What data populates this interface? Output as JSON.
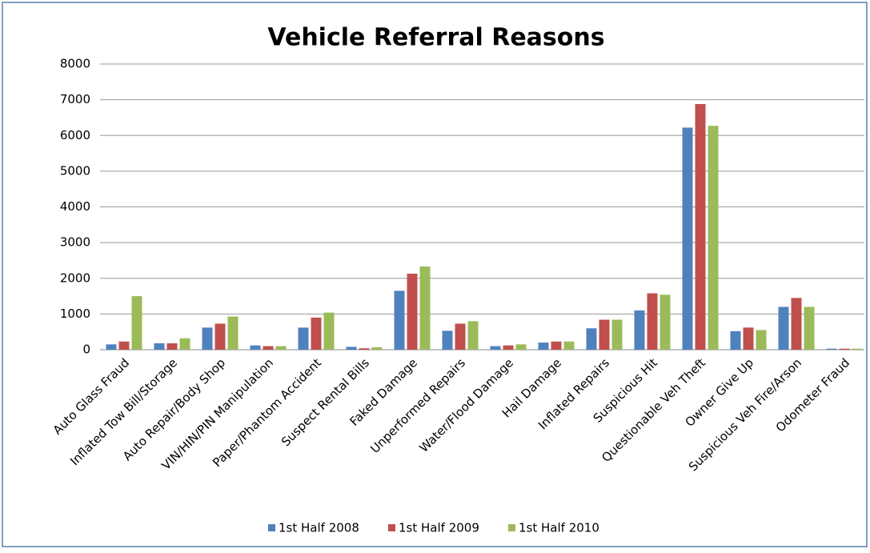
{
  "chart_data": {
    "type": "bar",
    "title": "Vehicle Referral Reasons",
    "categories": [
      "Auto Glass Fraud",
      "Inflated Tow Bill/Storage",
      "Auto Repair/Body Shop",
      "VIN/HIN/PIN Manipulation",
      "Paper/Phantom Accident",
      "Suspect Rental Bills",
      "Faked Damage",
      "Unperformed Repairs",
      "Water/Flood Damage",
      "Hail Damage",
      "Inflated Repairs",
      "Suspicious Hit",
      "Questionable Veh Theft",
      "Owner Give Up",
      "Suspicious Veh Fire/Arson",
      "Odometer Fraud"
    ],
    "series": [
      {
        "name": "1st Half 2008",
        "color": "#4f81bd",
        "values": [
          150,
          180,
          620,
          120,
          620,
          80,
          1650,
          530,
          100,
          200,
          600,
          1100,
          6220,
          520,
          1200,
          30
        ]
      },
      {
        "name": "1st Half 2009",
        "color": "#c0504d",
        "values": [
          230,
          180,
          730,
          100,
          900,
          40,
          2130,
          730,
          120,
          230,
          840,
          1580,
          6880,
          620,
          1450,
          30
        ]
      },
      {
        "name": "1st Half 2010",
        "color": "#9bbb59",
        "values": [
          1500,
          320,
          930,
          100,
          1040,
          70,
          2330,
          800,
          150,
          230,
          840,
          1540,
          6270,
          550,
          1200,
          30
        ]
      }
    ],
    "ylim": [
      0,
      8000
    ],
    "yticks": [
      0,
      1000,
      2000,
      3000,
      4000,
      5000,
      6000,
      7000,
      8000
    ],
    "grid": true,
    "legend": "bottom"
  }
}
